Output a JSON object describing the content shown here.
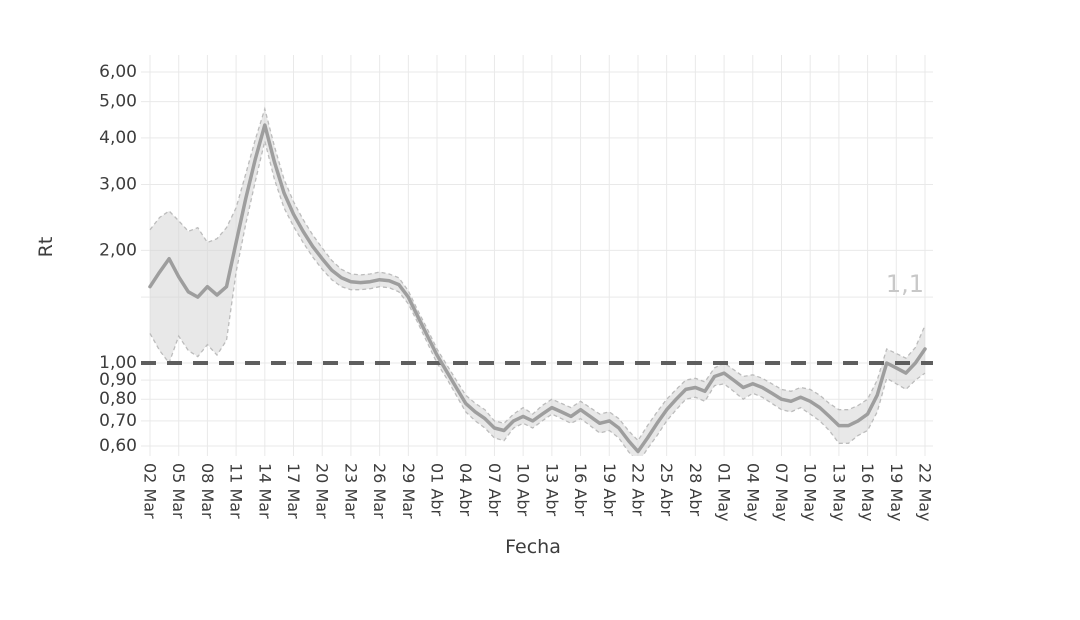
{
  "colors": {
    "background": "#ffffff",
    "grid": "#e9e9e9",
    "band_fill": "#d6d6d6",
    "band_edge": "#bcbcbc",
    "line": "#9e9e9e",
    "reference_line": "#5e5e5e",
    "tick_text": "#3d3d3d",
    "end_label_text": "#c8c8c8"
  },
  "chart_data": {
    "type": "line",
    "title": "",
    "xlabel": "Fecha",
    "ylabel": "Rt",
    "y_scale": "log",
    "ylim": [
      0.56,
      6.7
    ],
    "grid": true,
    "legend": false,
    "y_tick_labels": [
      "6,00",
      "5,00",
      "4,00",
      "3,00",
      "2,00",
      "1,00",
      "0,90",
      "0,80",
      "0,70",
      "0,60"
    ],
    "y_tick_values": [
      6,
      5,
      4,
      3,
      2,
      1,
      0.9,
      0.8,
      0.7,
      0.6
    ],
    "y_gridline_values": [
      6,
      5,
      4,
      3,
      2,
      1.5,
      1,
      0.9,
      0.8,
      0.7,
      0.6
    ],
    "x_tick_every_days": 3,
    "reference_line": {
      "value": 1.0,
      "style": "dashed"
    },
    "end_label": {
      "text": "1,1",
      "value": 1.1
    },
    "x": [
      "02 Mar",
      "03 Mar",
      "04 Mar",
      "05 Mar",
      "06 Mar",
      "07 Mar",
      "08 Mar",
      "09 Mar",
      "10 Mar",
      "11 Mar",
      "12 Mar",
      "13 Mar",
      "14 Mar",
      "15 Mar",
      "16 Mar",
      "17 Mar",
      "18 Mar",
      "19 Mar",
      "20 Mar",
      "21 Mar",
      "22 Mar",
      "23 Mar",
      "24 Mar",
      "25 Mar",
      "26 Mar",
      "27 Mar",
      "28 Mar",
      "29 Mar",
      "30 Mar",
      "31 Mar",
      "01 Abr",
      "02 Abr",
      "03 Abr",
      "04 Abr",
      "05 Abr",
      "06 Abr",
      "07 Abr",
      "08 Abr",
      "09 Abr",
      "10 Abr",
      "11 Abr",
      "12 Abr",
      "13 Abr",
      "14 Abr",
      "15 Abr",
      "16 Abr",
      "17 Abr",
      "18 Abr",
      "19 Abr",
      "20 Abr",
      "21 Abr",
      "22 Abr",
      "23 Abr",
      "24 Abr",
      "25 Abr",
      "26 Abr",
      "27 Abr",
      "28 Abr",
      "29 Abr",
      "30 Abr",
      "01 May",
      "02 May",
      "03 May",
      "04 May",
      "05 May",
      "06 May",
      "07 May",
      "08 May",
      "09 May",
      "10 May",
      "11 May",
      "12 May",
      "13 May",
      "14 May",
      "15 May",
      "16 May",
      "17 May",
      "18 May",
      "19 May",
      "20 May",
      "21 May",
      "22 May"
    ],
    "series": [
      {
        "name": "Rt",
        "values": [
          1.6,
          1.75,
          1.9,
          1.7,
          1.55,
          1.5,
          1.6,
          1.52,
          1.6,
          2.1,
          2.75,
          3.5,
          4.33,
          3.45,
          2.85,
          2.5,
          2.25,
          2.05,
          1.9,
          1.77,
          1.69,
          1.65,
          1.64,
          1.65,
          1.67,
          1.66,
          1.62,
          1.5,
          1.33,
          1.18,
          1.05,
          0.95,
          0.86,
          0.78,
          0.74,
          0.71,
          0.67,
          0.66,
          0.7,
          0.72,
          0.7,
          0.73,
          0.76,
          0.74,
          0.72,
          0.75,
          0.72,
          0.69,
          0.7,
          0.67,
          0.62,
          0.58,
          0.63,
          0.69,
          0.75,
          0.8,
          0.85,
          0.86,
          0.84,
          0.92,
          0.94,
          0.9,
          0.86,
          0.88,
          0.86,
          0.83,
          0.8,
          0.79,
          0.81,
          0.79,
          0.76,
          0.72,
          0.68,
          0.68,
          0.7,
          0.73,
          0.82,
          1.0,
          0.97,
          0.94,
          1.0,
          1.09
        ]
      },
      {
        "name": "upper_ci",
        "values": [
          2.27,
          2.45,
          2.55,
          2.4,
          2.25,
          2.3,
          2.1,
          2.15,
          2.3,
          2.6,
          3.2,
          3.95,
          4.78,
          3.8,
          3.1,
          2.7,
          2.42,
          2.2,
          2.03,
          1.88,
          1.78,
          1.73,
          1.72,
          1.73,
          1.75,
          1.73,
          1.69,
          1.56,
          1.38,
          1.23,
          1.09,
          0.99,
          0.9,
          0.82,
          0.78,
          0.75,
          0.7,
          0.69,
          0.73,
          0.76,
          0.73,
          0.77,
          0.8,
          0.78,
          0.76,
          0.79,
          0.76,
          0.73,
          0.74,
          0.71,
          0.66,
          0.62,
          0.68,
          0.74,
          0.8,
          0.85,
          0.9,
          0.91,
          0.89,
          0.97,
          1.0,
          0.96,
          0.92,
          0.93,
          0.91,
          0.88,
          0.85,
          0.84,
          0.86,
          0.85,
          0.82,
          0.78,
          0.75,
          0.75,
          0.77,
          0.8,
          0.9,
          1.09,
          1.06,
          1.03,
          1.1,
          1.26
        ]
      },
      {
        "name": "lower_ci",
        "values": [
          1.2,
          1.08,
          1.0,
          1.18,
          1.08,
          1.04,
          1.12,
          1.05,
          1.15,
          1.75,
          2.35,
          3.05,
          3.92,
          3.1,
          2.6,
          2.32,
          2.1,
          1.92,
          1.78,
          1.67,
          1.6,
          1.57,
          1.57,
          1.58,
          1.6,
          1.59,
          1.55,
          1.44,
          1.28,
          1.13,
          1.0,
          0.91,
          0.82,
          0.74,
          0.7,
          0.67,
          0.63,
          0.62,
          0.67,
          0.69,
          0.67,
          0.7,
          0.73,
          0.71,
          0.69,
          0.71,
          0.68,
          0.65,
          0.66,
          0.63,
          0.58,
          0.54,
          0.59,
          0.64,
          0.7,
          0.75,
          0.8,
          0.81,
          0.79,
          0.87,
          0.88,
          0.84,
          0.8,
          0.83,
          0.81,
          0.78,
          0.75,
          0.74,
          0.76,
          0.73,
          0.7,
          0.66,
          0.61,
          0.61,
          0.64,
          0.66,
          0.74,
          0.91,
          0.88,
          0.85,
          0.9,
          0.94
        ]
      }
    ]
  }
}
